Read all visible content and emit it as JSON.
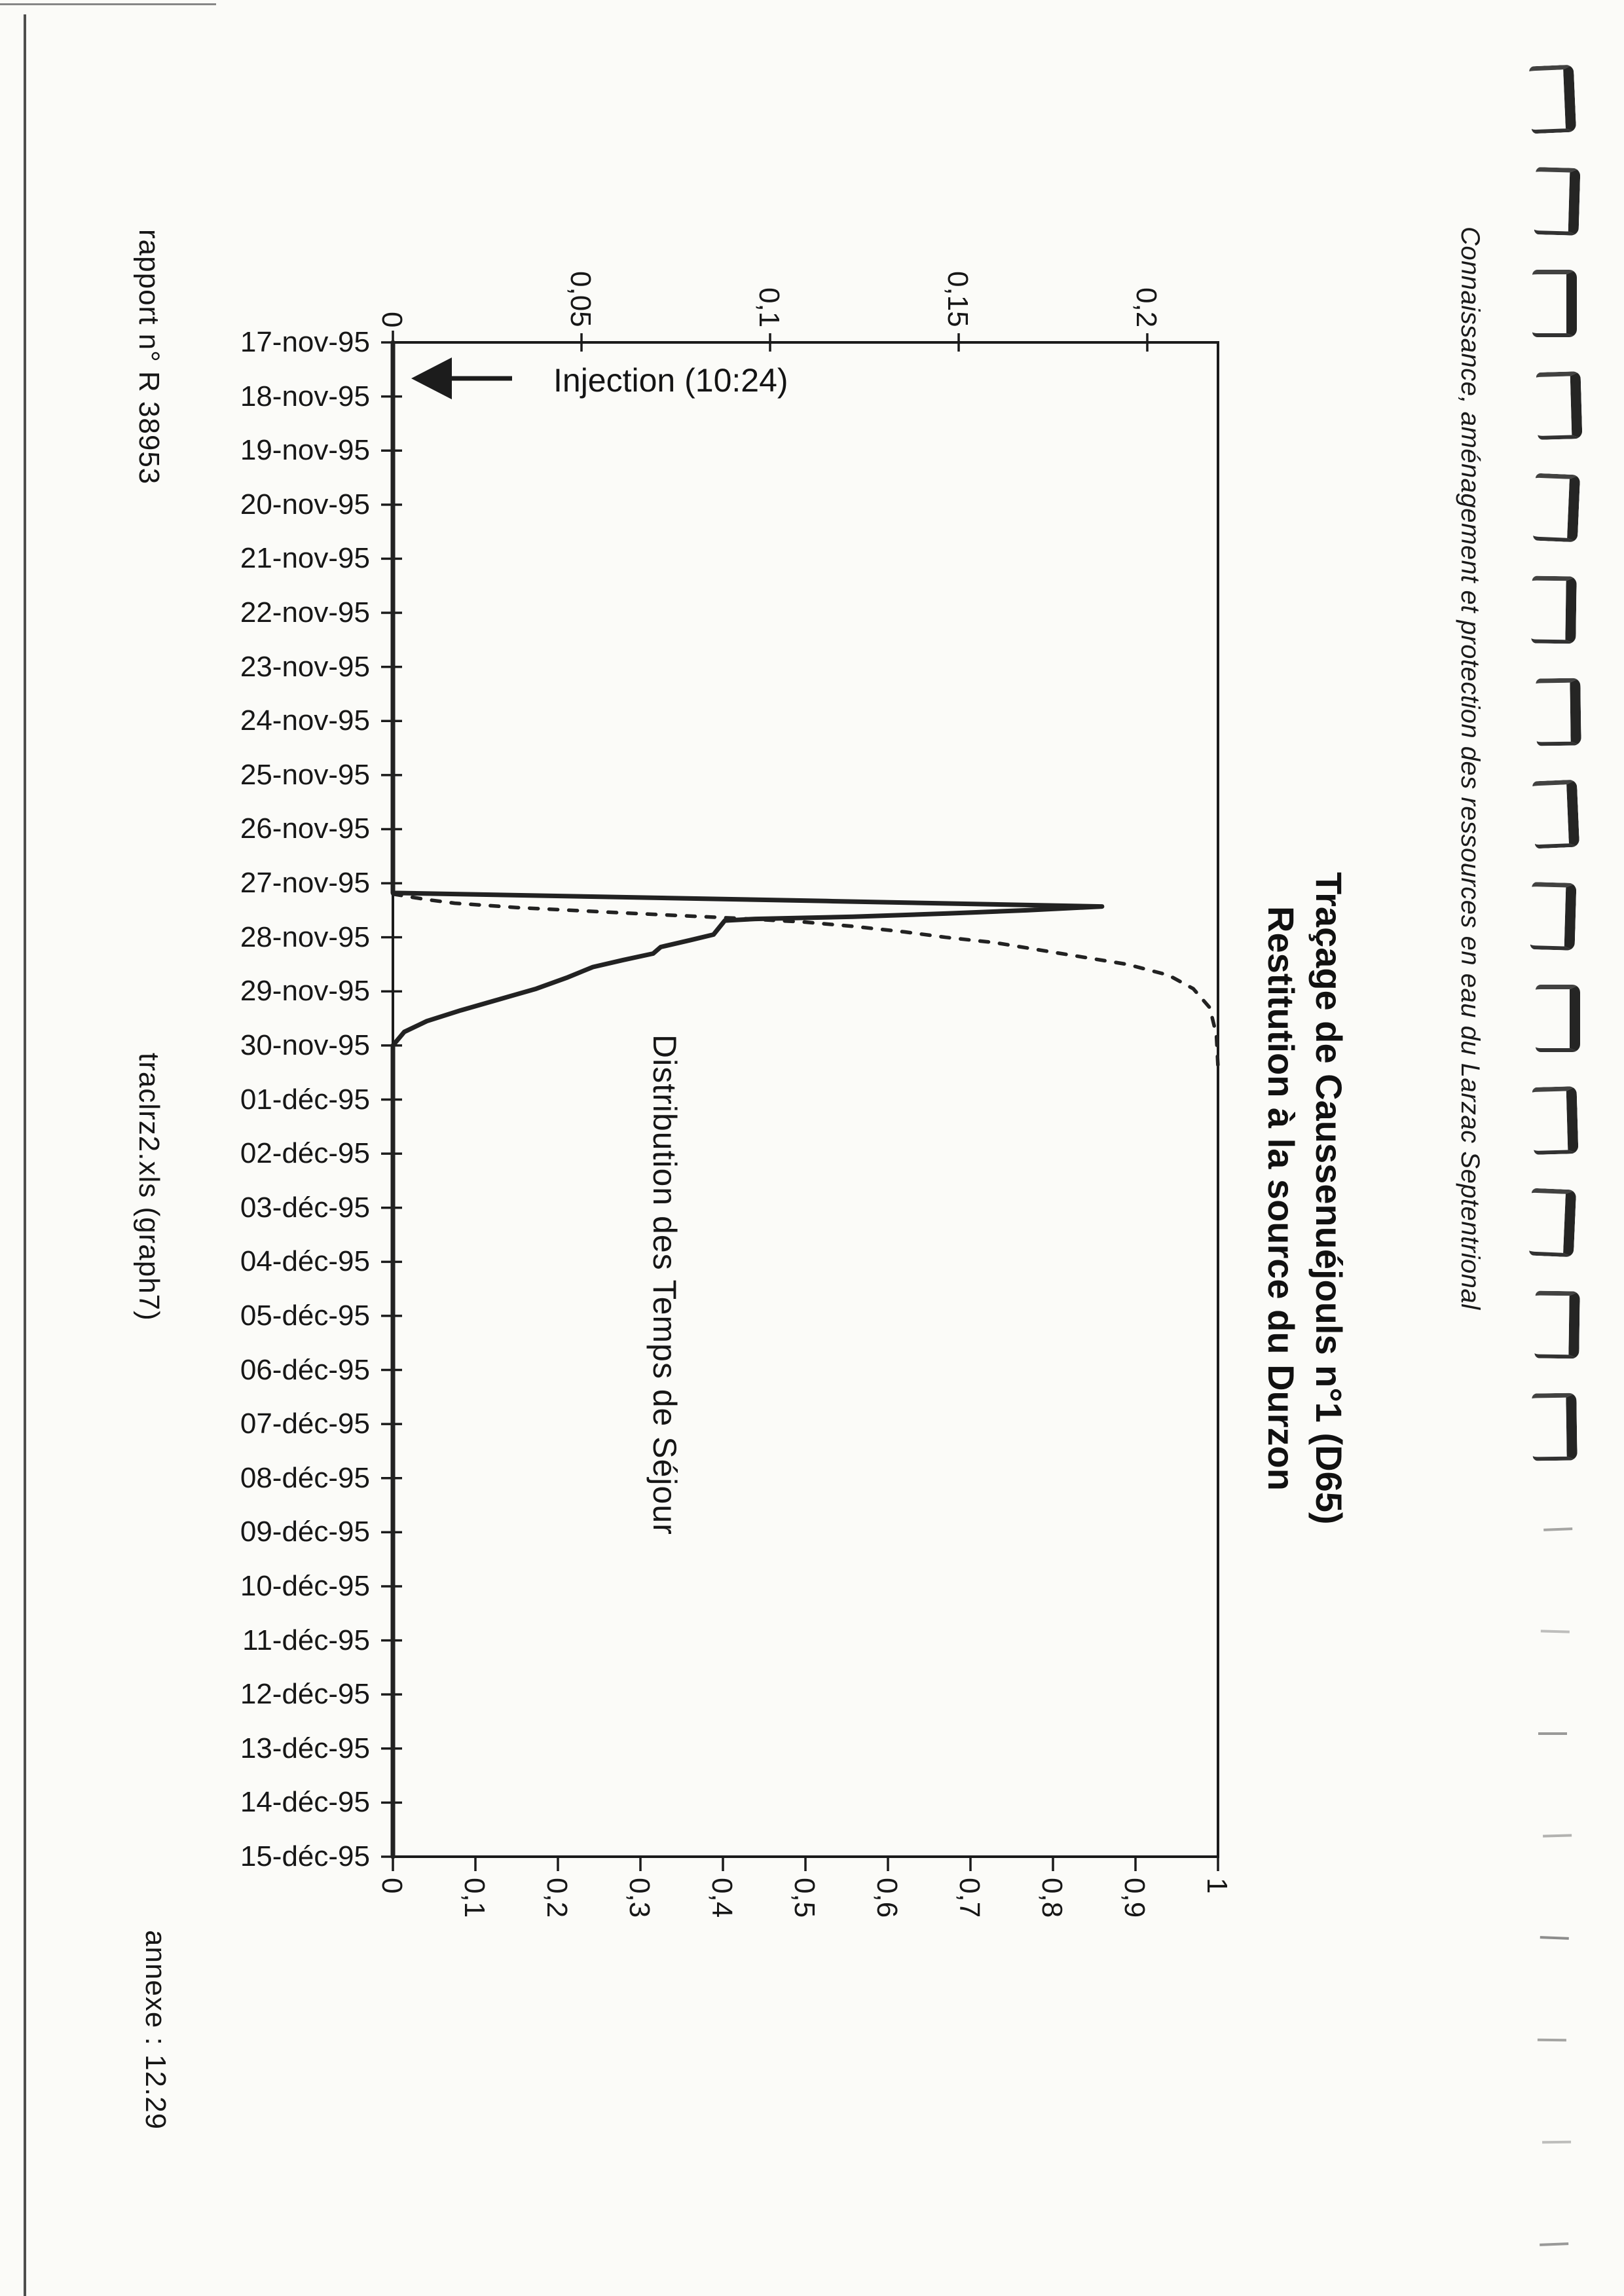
{
  "page": {
    "background": "#fbfbf8",
    "ink": "#1e1e1e",
    "margin_left_top": "rapport n° R 38953",
    "margin_left_middle": "traclrz2.xls (graph7)",
    "margin_left_bottom": "annexe : 12.29",
    "margin_right": "Connaissance, aménagement et protection des ressources en eau du Larzac Septentrional"
  },
  "chart_data": {
    "type": "line",
    "title": "Traçage de Caussenuéjouls n°1 (D65)",
    "subtitle": "Restitution à la source du Durzon",
    "annotation_injection": "Injection (10:24)",
    "curve_label": "Distribution des Temps de Séjour",
    "orientation_note": "landscape chart rotated 90deg clockwise on portrait page",
    "date_axis": {
      "first": "17-nov-95",
      "last": "15-déc-95",
      "labels": [
        "17-nov-95",
        "18-nov-95",
        "19-nov-95",
        "20-nov-95",
        "21-nov-95",
        "22-nov-95",
        "23-nov-95",
        "24-nov-95",
        "25-nov-95",
        "26-nov-95",
        "27-nov-95",
        "28-nov-95",
        "29-nov-95",
        "30-nov-95",
        "01-déc-95",
        "02-déc-95",
        "03-déc-95",
        "04-déc-95",
        "05-déc-95",
        "06-déc-95",
        "07-déc-95",
        "08-déc-95",
        "09-déc-95",
        "10-déc-95",
        "11-déc-95",
        "12-déc-95",
        "13-déc-95",
        "14-déc-95",
        "15-déc-95"
      ]
    },
    "concentration_axis": {
      "range": [
        0,
        0.2
      ],
      "tick_values": [
        0,
        0.05,
        0.1,
        0.15,
        0.2
      ],
      "tick_labels": [
        "0",
        "0,05",
        "0,1",
        "0,15",
        "0,2"
      ]
    },
    "cumulative_axis": {
      "range": [
        0,
        1
      ],
      "tick_values": [
        0,
        0.1,
        0.2,
        0.3,
        0.4,
        0.5,
        0.6,
        0.7,
        0.8,
        0.9,
        1
      ],
      "tick_labels": [
        "0",
        "0,1",
        "0,2",
        "0,3",
        "0,4",
        "0,5",
        "0,6",
        "0,7",
        "0,8",
        "0,9",
        "1"
      ]
    },
    "injection_marker_day": 0.65,
    "series": [
      {
        "name": "restitution-concentration",
        "style": "solid",
        "axis": "concentration",
        "points": [
          [
            0,
            0
          ],
          [
            10.18,
            0
          ],
          [
            10.25,
            0.055
          ],
          [
            10.33,
            0.115
          ],
          [
            10.43,
            0.188
          ],
          [
            10.5,
            0.168
          ],
          [
            10.56,
            0.147
          ],
          [
            10.62,
            0.122
          ],
          [
            10.66,
            0.096
          ],
          [
            10.69,
            0.088
          ],
          [
            10.95,
            0.085
          ],
          [
            11.05,
            0.079
          ],
          [
            11.18,
            0.071
          ],
          [
            11.3,
            0.069
          ],
          [
            11.42,
            0.061
          ],
          [
            11.55,
            0.053
          ],
          [
            11.75,
            0.046
          ],
          [
            11.95,
            0.038
          ],
          [
            12.15,
            0.028
          ],
          [
            12.35,
            0.018
          ],
          [
            12.55,
            0.009
          ],
          [
            12.75,
            0.003
          ],
          [
            13.0,
            0
          ],
          [
            28,
            0
          ]
        ]
      },
      {
        "name": "distribution-temps-sejour-cumulee",
        "style": "dashed",
        "axis": "cumulative",
        "points": [
          [
            10.2,
            0
          ],
          [
            10.3,
            0.04
          ],
          [
            10.37,
            0.075
          ],
          [
            10.45,
            0.15
          ],
          [
            10.55,
            0.28
          ],
          [
            10.65,
            0.42
          ],
          [
            10.72,
            0.5
          ],
          [
            10.8,
            0.56
          ],
          [
            10.9,
            0.62
          ],
          [
            11.0,
            0.67
          ],
          [
            11.1,
            0.73
          ],
          [
            11.3,
            0.81
          ],
          [
            11.5,
            0.89
          ],
          [
            11.7,
            0.94
          ],
          [
            11.95,
            0.97
          ],
          [
            12.3,
            0.99
          ],
          [
            12.8,
            0.998
          ],
          [
            13.4,
            1.0
          ]
        ]
      }
    ]
  },
  "binder_marks": {
    "start_y": 145,
    "spacing": 156,
    "count": 22,
    "strong_count": 14
  }
}
